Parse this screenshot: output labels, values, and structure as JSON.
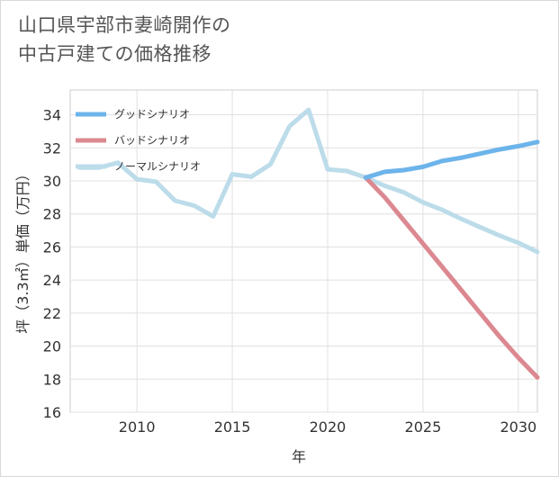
{
  "title": {
    "line1": "山口県宇部市妻崎開作の",
    "line2": "中古戸建ての価格推移"
  },
  "chart_data": {
    "type": "line",
    "xlabel": "年",
    "ylabel": "坪（3.3㎡）単価（万円）",
    "xlim": [
      2006.5,
      2031
    ],
    "ylim": [
      16,
      35.5
    ],
    "xticks": [
      2010,
      2015,
      2020,
      2025,
      2030
    ],
    "yticks": [
      16,
      18,
      20,
      22,
      24,
      26,
      28,
      30,
      32,
      34
    ],
    "grid": true,
    "legend_position": "top-left",
    "series": [
      {
        "name": "グッドシナリオ",
        "color": "#6cb4ea",
        "x": [
          2022,
          2023,
          2024,
          2025,
          2026,
          2027,
          2028,
          2029,
          2030,
          2031
        ],
        "y": [
          30.2,
          30.55,
          30.65,
          30.85,
          31.2,
          31.4,
          31.65,
          31.9,
          32.1,
          32.35
        ]
      },
      {
        "name": "バッドシナリオ",
        "color": "#dc8890",
        "x": [
          2022,
          2023,
          2024,
          2025,
          2026,
          2027,
          2028,
          2029,
          2030,
          2031
        ],
        "y": [
          30.2,
          29.0,
          27.6,
          26.2,
          24.8,
          23.4,
          22.0,
          20.6,
          19.3,
          18.1
        ]
      },
      {
        "name": "ノーマルシナリオ",
        "color": "#bcdcea",
        "x": [
          2007,
          2008,
          2009,
          2010,
          2011,
          2012,
          2013,
          2014,
          2015,
          2016,
          2017,
          2018,
          2019,
          2020,
          2021,
          2022,
          2023,
          2024,
          2025,
          2026,
          2027,
          2028,
          2029,
          2030,
          2031
        ],
        "y": [
          30.8,
          30.8,
          31.1,
          30.1,
          29.95,
          28.8,
          28.5,
          27.85,
          30.4,
          30.25,
          31.0,
          33.3,
          34.3,
          30.7,
          30.6,
          30.2,
          29.7,
          29.3,
          28.7,
          28.25,
          27.7,
          27.2,
          26.7,
          26.25,
          25.7
        ]
      }
    ]
  }
}
